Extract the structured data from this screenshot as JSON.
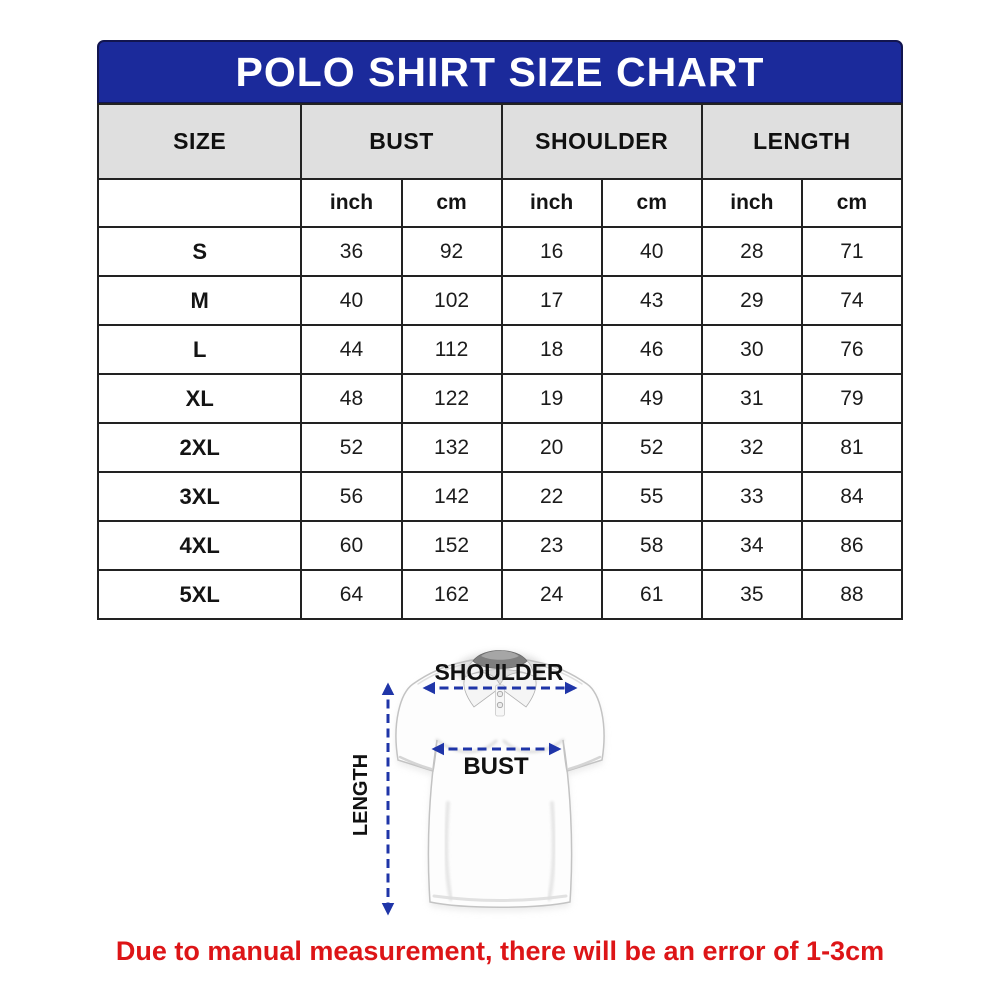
{
  "colors": {
    "header_blue": "#1b2a9b",
    "header_border": "#12154f",
    "table_border": "#222222",
    "subheader_gray": "#dfdfdf",
    "arrow_blue": "#1f35a8",
    "note_red": "#dd1517",
    "label_black": "#111111"
  },
  "title": "POLO SHIRT SIZE CHART",
  "table": {
    "group_headers": [
      "SIZE",
      "BUST",
      "SHOULDER",
      "LENGTH"
    ],
    "unit_headers": [
      "inch",
      "cm",
      "inch",
      "cm",
      "inch",
      "cm"
    ],
    "rows": [
      {
        "size": "S",
        "values": [
          "36",
          "92",
          "16",
          "40",
          "28",
          "71"
        ]
      },
      {
        "size": "M",
        "values": [
          "40",
          "102",
          "17",
          "43",
          "29",
          "74"
        ]
      },
      {
        "size": "L",
        "values": [
          "44",
          "112",
          "18",
          "46",
          "30",
          "76"
        ]
      },
      {
        "size": "XL",
        "values": [
          "48",
          "122",
          "19",
          "49",
          "31",
          "79"
        ]
      },
      {
        "size": "2XL",
        "values": [
          "52",
          "132",
          "20",
          "52",
          "32",
          "81"
        ]
      },
      {
        "size": "3XL",
        "values": [
          "56",
          "142",
          "22",
          "55",
          "33",
          "84"
        ]
      },
      {
        "size": "4XL",
        "values": [
          "60",
          "152",
          "23",
          "58",
          "34",
          "86"
        ]
      },
      {
        "size": "5XL",
        "values": [
          "64",
          "162",
          "24",
          "61",
          "35",
          "88"
        ]
      }
    ]
  },
  "figure": {
    "shoulder_label": "SHOULDER",
    "bust_label": "BUST",
    "length_label": "LENGTH"
  },
  "note": "Due to manual measurement, there will be an error of 1-3cm",
  "chart_data": {
    "type": "table",
    "title": "POLO SHIRT SIZE CHART",
    "columns": [
      "SIZE",
      "BUST (inch)",
      "BUST (cm)",
      "SHOULDER (inch)",
      "SHOULDER (cm)",
      "LENGTH (inch)",
      "LENGTH (cm)"
    ],
    "rows": [
      [
        "S",
        36,
        92,
        16,
        40,
        28,
        71
      ],
      [
        "M",
        40,
        102,
        17,
        43,
        29,
        74
      ],
      [
        "L",
        44,
        112,
        18,
        46,
        30,
        76
      ],
      [
        "XL",
        48,
        122,
        19,
        49,
        31,
        79
      ],
      [
        "2XL",
        52,
        132,
        20,
        52,
        32,
        81
      ],
      [
        "3XL",
        56,
        142,
        22,
        55,
        33,
        84
      ],
      [
        "4XL",
        60,
        152,
        23,
        58,
        34,
        86
      ],
      [
        "5XL",
        64,
        162,
        24,
        61,
        35,
        88
      ]
    ]
  }
}
